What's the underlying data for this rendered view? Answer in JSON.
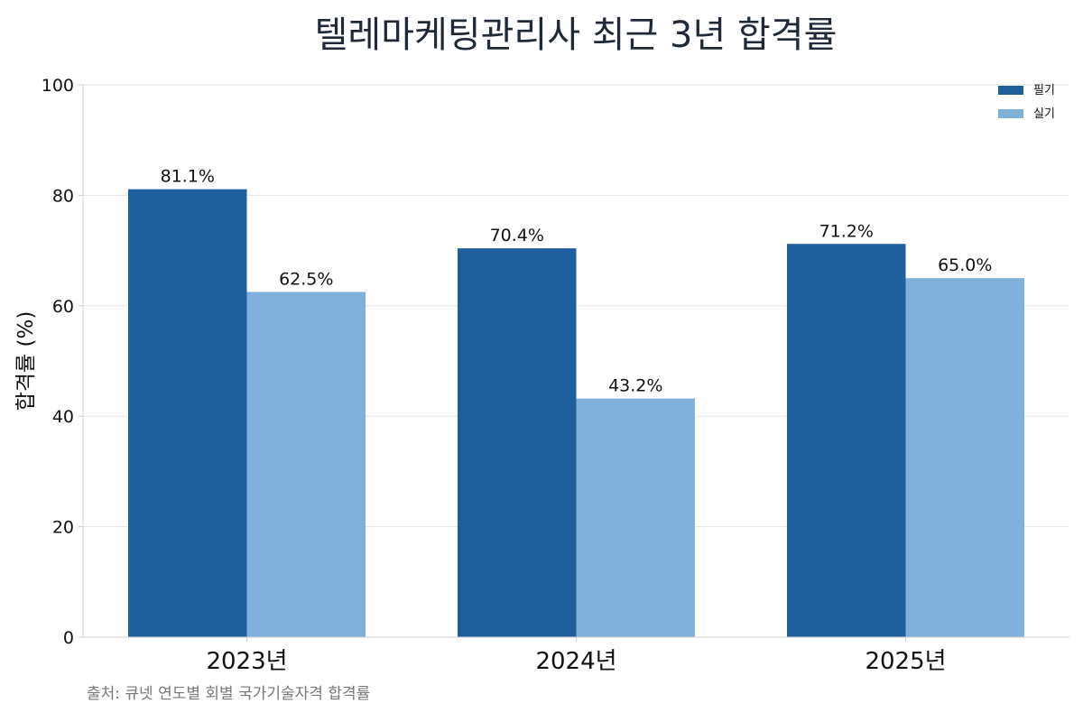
{
  "chart_data": {
    "type": "bar",
    "title": "텔레마케팅관리사 최근 3년 합격률",
    "xlabel": "",
    "ylabel": "합격률 (%)",
    "categories": [
      "2023년",
      "2024년",
      "2025년"
    ],
    "series": [
      {
        "name": "필기",
        "values": [
          81.1,
          70.4,
          71.2
        ],
        "color": "#1f5f9e"
      },
      {
        "name": "실기",
        "values": [
          62.5,
          43.2,
          65.0
        ],
        "color": "#80b1dc"
      }
    ],
    "data_labels": [
      [
        "81.1%",
        "70.4%",
        "71.2%"
      ],
      [
        "62.5%",
        "43.2%",
        "65.0%"
      ]
    ],
    "ylim": [
      0,
      100
    ],
    "yticks": [
      0,
      20,
      40,
      60,
      80,
      100
    ],
    "grid": true,
    "legend_position": "top-right"
  },
  "source": "출처: 큐넷 연도별 회별 국가기술자격 합격률"
}
